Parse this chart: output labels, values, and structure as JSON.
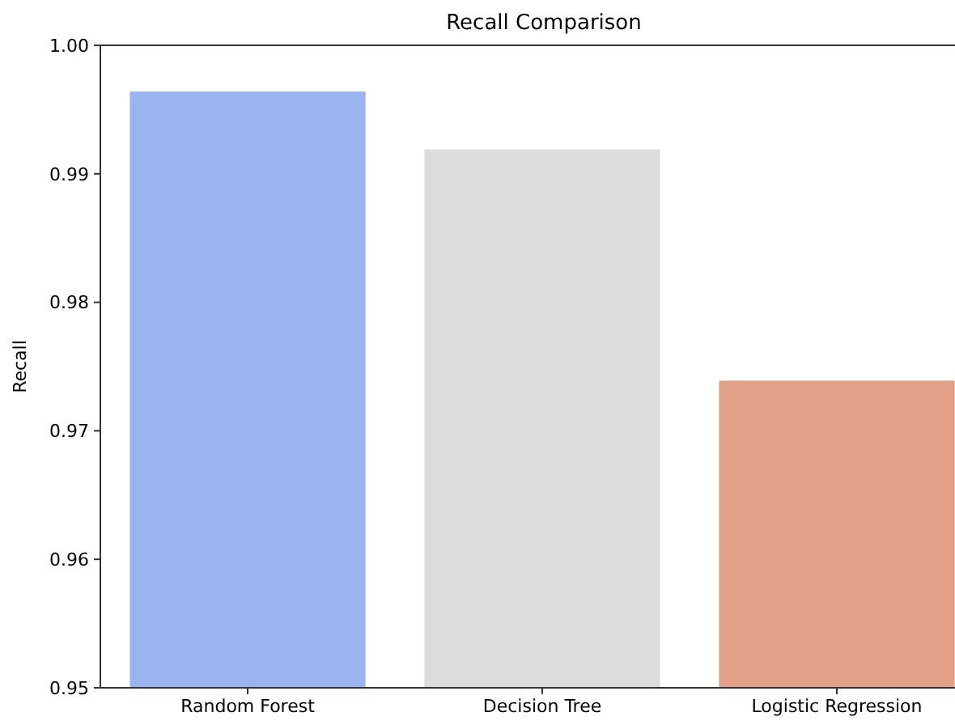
{
  "chart_data": {
    "type": "bar",
    "title": "Recall Comparison",
    "ylabel": "Recall",
    "categories": [
      "Random Forest",
      "Decision Tree",
      "Logistic Regression"
    ],
    "values": [
      0.9964,
      0.9919,
      0.9739
    ],
    "colors": [
      "#9ab4ef",
      "#dcdcdc",
      "#e3a088"
    ],
    "ylim": [
      0.95,
      1.0
    ],
    "yticks": [
      {
        "value": 0.95,
        "label": "0.95"
      },
      {
        "value": 0.96,
        "label": "0.96"
      },
      {
        "value": 0.97,
        "label": "0.97"
      },
      {
        "value": 0.98,
        "label": "0.98"
      },
      {
        "value": 0.99,
        "label": "0.99"
      },
      {
        "value": 1.0,
        "label": "1.00"
      }
    ]
  }
}
